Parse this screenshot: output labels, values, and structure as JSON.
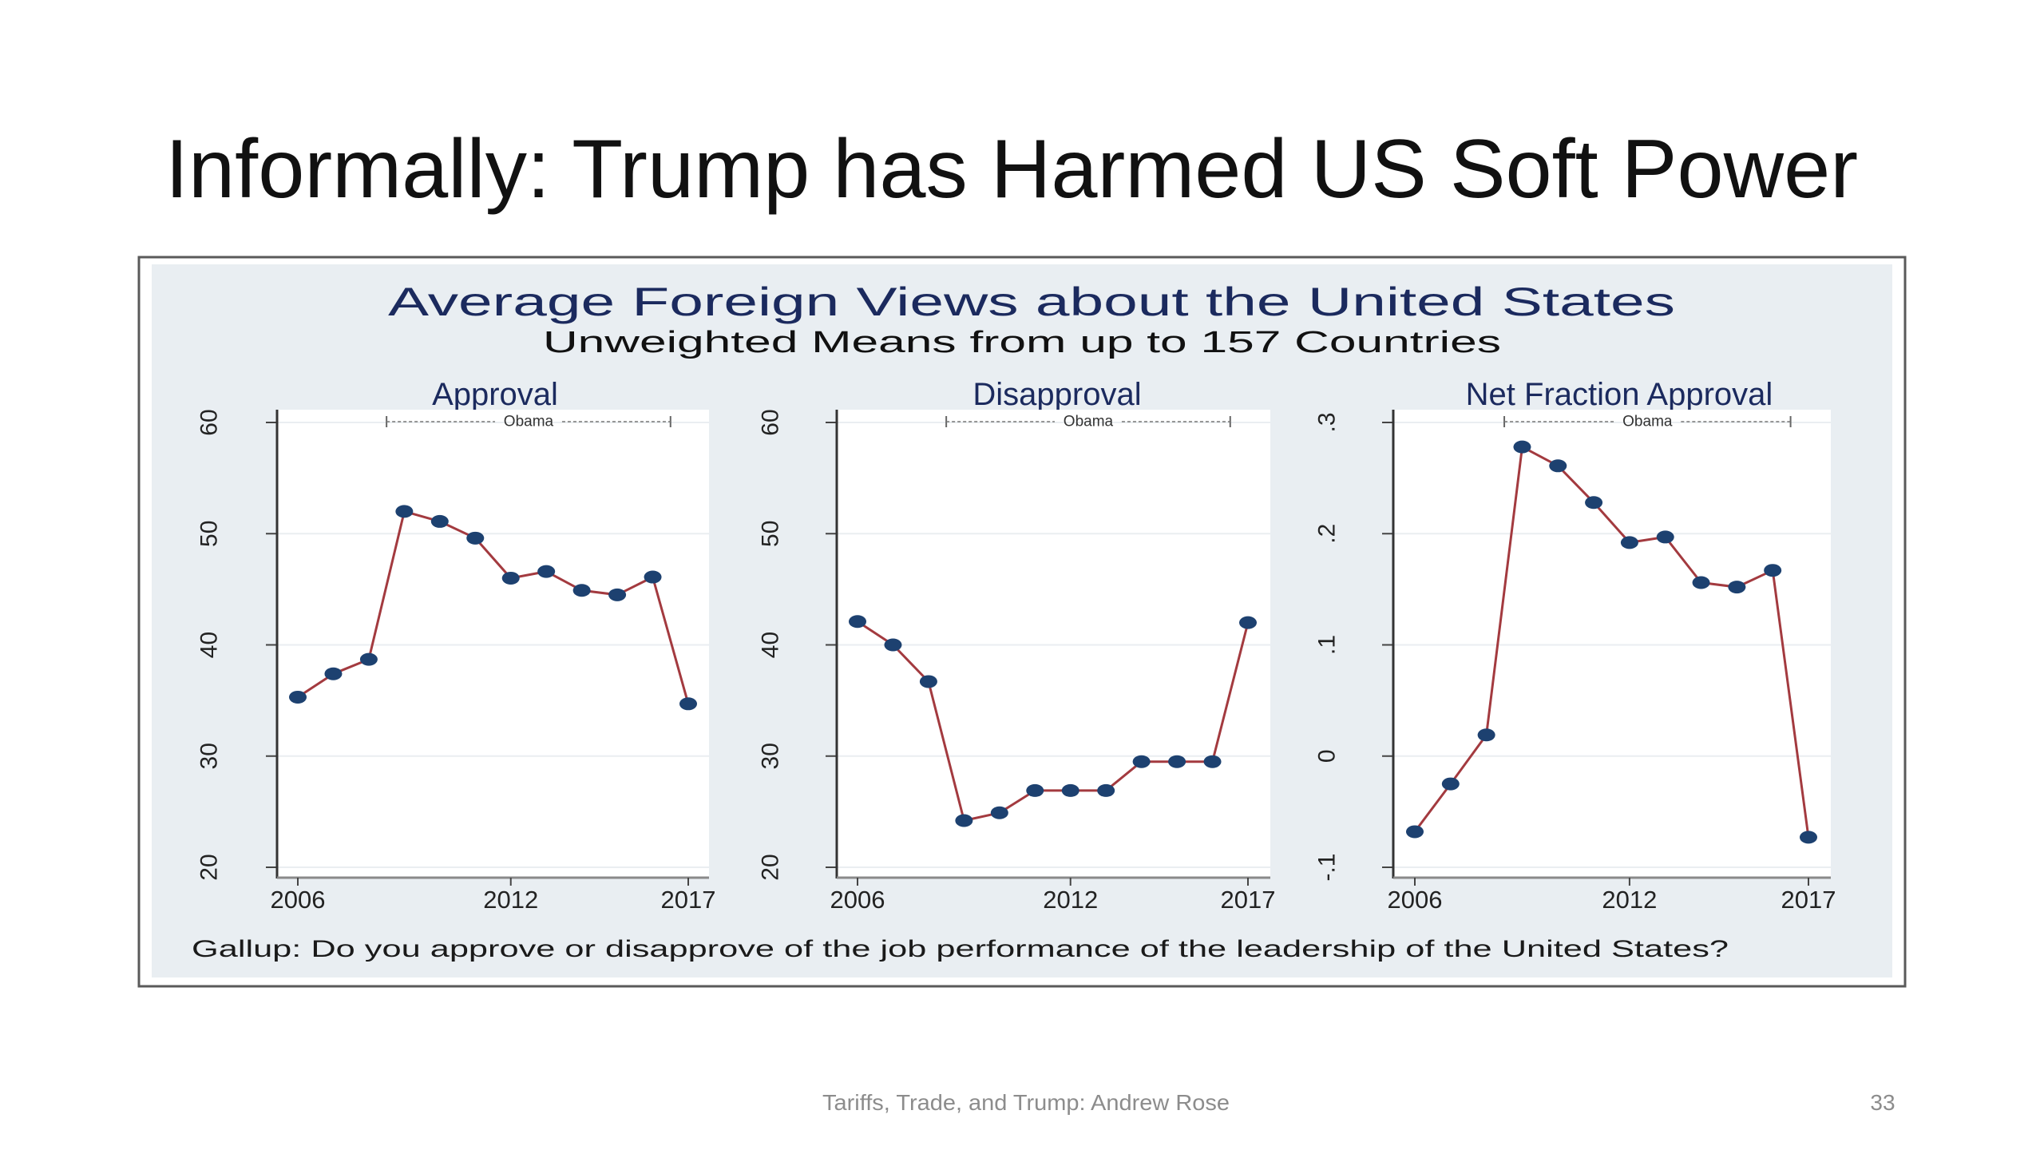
{
  "slide": {
    "title": "Informally: Trump has Harmed US Soft Power",
    "footer": "Tariffs, Trade, and Trump: Andrew Rose",
    "page_number": "33"
  },
  "figure": {
    "title": "Average Foreign Views about the United States",
    "subtitle": "Unweighted Means from up to 157 Countries",
    "note": "Gallup: Do you approve or disapprove of the job performance of the leadership of the United States?",
    "colors": {
      "background": "#e9eef2",
      "plot_background": "#ffffff",
      "line": "#a33a3f",
      "marker": "#1d4170",
      "title": "#1b2a5e",
      "frame": "#5a5a5a"
    }
  },
  "chart_data": [
    {
      "type": "line",
      "title": "Approval",
      "xlabel": "",
      "ylabel": "",
      "x": [
        2006,
        2007,
        2008,
        2009,
        2010,
        2011,
        2012,
        2013,
        2014,
        2015,
        2016,
        2017
      ],
      "series": [
        {
          "name": "Approval",
          "values": [
            35.3,
            37.4,
            38.7,
            52.0,
            51.1,
            49.6,
            46.0,
            46.6,
            44.9,
            44.5,
            46.1,
            34.7
          ]
        }
      ],
      "xlim": [
        2006,
        2017
      ],
      "ylim": [
        20,
        60
      ],
      "xticks": [
        2006,
        2012,
        2017
      ],
      "xtick_labels": [
        "2006",
        "2012",
        "2017"
      ],
      "yticks": [
        20,
        30,
        40,
        50,
        60
      ],
      "ytick_labels": [
        "20",
        "30",
        "40",
        "50",
        "60"
      ],
      "grid": true,
      "annotation": {
        "label": "Obama",
        "x_range": [
          2008.5,
          2016.5
        ]
      }
    },
    {
      "type": "line",
      "title": "Disapproval",
      "xlabel": "",
      "ylabel": "",
      "x": [
        2006,
        2007,
        2008,
        2009,
        2010,
        2011,
        2012,
        2013,
        2014,
        2015,
        2016,
        2017
      ],
      "series": [
        {
          "name": "Disapproval",
          "values": [
            42.1,
            40.0,
            36.7,
            24.2,
            24.9,
            26.9,
            26.9,
            26.9,
            29.5,
            29.5,
            29.5,
            42.0
          ]
        }
      ],
      "xlim": [
        2006,
        2017
      ],
      "ylim": [
        20,
        60
      ],
      "xticks": [
        2006,
        2012,
        2017
      ],
      "xtick_labels": [
        "2006",
        "2012",
        "2017"
      ],
      "yticks": [
        20,
        30,
        40,
        50,
        60
      ],
      "ytick_labels": [
        "20",
        "30",
        "40",
        "50",
        "60"
      ],
      "grid": true,
      "annotation": {
        "label": "Obama",
        "x_range": [
          2008.5,
          2016.5
        ]
      }
    },
    {
      "type": "line",
      "title": "Net Fraction Approval",
      "xlabel": "",
      "ylabel": "",
      "x": [
        2006,
        2007,
        2008,
        2009,
        2010,
        2011,
        2012,
        2013,
        2014,
        2015,
        2016,
        2017
      ],
      "series": [
        {
          "name": "Net Fraction Approval",
          "values": [
            -0.068,
            -0.025,
            0.019,
            0.278,
            0.261,
            0.228,
            0.192,
            0.197,
            0.156,
            0.152,
            0.167,
            -0.073
          ]
        }
      ],
      "xlim": [
        2006,
        2017
      ],
      "ylim": [
        -0.1,
        0.3
      ],
      "xticks": [
        2006,
        2012,
        2017
      ],
      "xtick_labels": [
        "2006",
        "2012",
        "2017"
      ],
      "yticks": [
        -0.1,
        0,
        0.1,
        0.2,
        0.3
      ],
      "ytick_labels": [
        "-.1",
        "0",
        ".1",
        ".2",
        ".3"
      ],
      "grid": true,
      "annotation": {
        "label": "Obama",
        "x_range": [
          2008.5,
          2016.5
        ]
      }
    }
  ]
}
